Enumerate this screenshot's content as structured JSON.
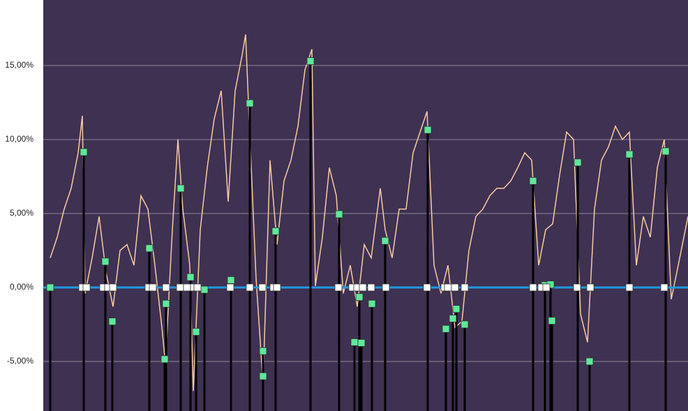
{
  "chart_data": {
    "type": "line",
    "background": "#3f3152",
    "grid": true,
    "grid_color": "#8e8699",
    "zero_line_color": "#1e9ae0",
    "xlim": [
      0,
      924
    ],
    "ylim": [
      -8.35,
      19.43
    ],
    "yticks": [
      {
        "value": -5,
        "label": "-5,00%"
      },
      {
        "value": 0,
        "label": "0,00%"
      },
      {
        "value": 5,
        "label": "5,00%"
      },
      {
        "value": 10,
        "label": "10,00%"
      },
      {
        "value": 15,
        "label": "15,00%"
      }
    ],
    "series": [
      {
        "type": "line",
        "color": "#f9cba3",
        "x": [
          10,
          20,
          30,
          40,
          50,
          56,
          60,
          70,
          80,
          90,
          100,
          110,
          120,
          130,
          140,
          150,
          160,
          170,
          175,
          185,
          193,
          200,
          210,
          215,
          225,
          235,
          245,
          255,
          265,
          275,
          285,
          290,
          295,
          305,
          315,
          325,
          335,
          345,
          355,
          365,
          375,
          385,
          390,
          400,
          410,
          420,
          430,
          440,
          450,
          460,
          470,
          483,
          490,
          500,
          510,
          520,
          530,
          540,
          550,
          560,
          570,
          580,
          590,
          600,
          610,
          620,
          630,
          640,
          650,
          660,
          670,
          680,
          690,
          700,
          710,
          720,
          730,
          740,
          750,
          760,
          770,
          780,
          790,
          800,
          810,
          820,
          830,
          840,
          850,
          860,
          870,
          880,
          890,
          900,
          910,
          924
        ],
        "values": [
          2.0,
          3.4,
          5.3,
          6.7,
          9.1,
          11.6,
          -0.4,
          2.0,
          4.8,
          1.0,
          -1.3,
          2.5,
          2.9,
          1.5,
          6.2,
          5.3,
          1.5,
          -2.7,
          -5.1,
          3.9,
          10.0,
          5.3,
          1.5,
          -7.0,
          3.9,
          8.1,
          11.4,
          13.3,
          5.8,
          13.3,
          15.7,
          17.1,
          11.4,
          0.6,
          -6.5,
          8.6,
          2.9,
          7.2,
          8.6,
          10.9,
          14.7,
          16.1,
          0.1,
          3.4,
          8.1,
          6.2,
          -0.4,
          1.5,
          -1.3,
          2.9,
          2.0,
          6.7,
          3.9,
          2.0,
          5.3,
          5.3,
          9.1,
          10.5,
          11.9,
          1.5,
          -0.4,
          1.5,
          -2.7,
          -2.3,
          2.5,
          4.8,
          5.3,
          6.2,
          6.7,
          6.7,
          7.2,
          8.1,
          9.1,
          8.6,
          1.5,
          3.9,
          4.3,
          7.6,
          10.5,
          10.0,
          -1.8,
          -3.7,
          5.3,
          8.6,
          9.5,
          10.9,
          10.0,
          10.5,
          1.5,
          4.8,
          3.4,
          8.1,
          10.0,
          -0.8,
          1.5,
          4.8
        ]
      },
      {
        "type": "scatter",
        "color": "#5ee89a",
        "drop_lines": true,
        "x": [
          10,
          58,
          89,
          99,
          152,
          174,
          176,
          197,
          211,
          219,
          231,
          269,
          296,
          315,
          315,
          333,
          383,
          424,
          446,
          456,
          453,
          471,
          490,
          551,
          577,
          587,
          592,
          604,
          702,
          719,
          727,
          729,
          766,
          783,
          840,
          892
        ],
        "values": [
          0.0,
          9.15,
          1.75,
          -2.3,
          2.65,
          -4.85,
          -1.1,
          6.7,
          0.7,
          -3.0,
          -0.15,
          0.5,
          12.45,
          -4.3,
          -6.0,
          3.8,
          15.3,
          4.95,
          -3.7,
          -3.75,
          -0.65,
          -1.1,
          3.15,
          10.65,
          -2.8,
          -2.1,
          -1.45,
          -2.5,
          7.2,
          0.15,
          0.2,
          -2.25,
          8.45,
          -5.0,
          9.0,
          9.2
        ]
      },
      {
        "type": "scatter",
        "color": "#ffffff",
        "x": [
          56,
          62,
          86,
          93,
          100,
          151,
          157,
          176,
          196,
          206,
          216,
          221,
          268,
          296,
          314,
          330,
          335,
          423,
          443,
          450,
          458,
          470,
          491,
          550,
          575,
          580,
          590,
          604,
          702,
          714,
          721,
          765,
          784,
          840,
          890
        ],
        "values": [
          0,
          0,
          0,
          0,
          0,
          0,
          0,
          0,
          0,
          0,
          0,
          0,
          0,
          0,
          0,
          0,
          0,
          0,
          0,
          0,
          0,
          0,
          0,
          0,
          0,
          0,
          0,
          0,
          0,
          0,
          0,
          0,
          0,
          0,
          0
        ]
      }
    ]
  }
}
